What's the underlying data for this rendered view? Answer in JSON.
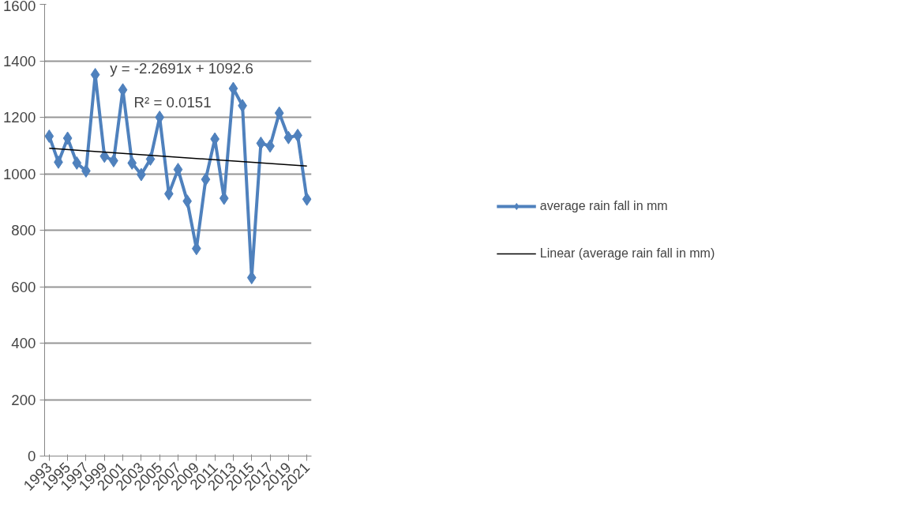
{
  "chart_data": {
    "type": "line",
    "x": [
      1993,
      1994,
      1995,
      1996,
      1997,
      1998,
      1999,
      2000,
      2001,
      2002,
      2003,
      2004,
      2005,
      2006,
      2007,
      2008,
      2009,
      2010,
      2011,
      2012,
      2013,
      2014,
      2015,
      2016,
      2017,
      2018,
      2019,
      2020,
      2021
    ],
    "series": [
      {
        "name": "average rain fall in mm",
        "color": "#4f81bd",
        "marker": "diamond",
        "values": [
          1133,
          1041,
          1126,
          1038,
          1010,
          1351,
          1062,
          1046,
          1297,
          1038,
          997,
          1052,
          1200,
          929,
          1015,
          903,
          735,
          980,
          1123,
          913,
          1302,
          1241,
          632,
          1108,
          1098,
          1215,
          1128,
          1136,
          910
        ]
      },
      {
        "name": "Linear (average rain fall in mm)",
        "color": "#000000",
        "marker": "none",
        "x": [
          1993,
          2021
        ],
        "values": [
          1090,
          1027
        ]
      }
    ],
    "xlim": [
      1992.5,
      2021.5
    ],
    "xticks": [
      1993,
      1995,
      1997,
      1999,
      2001,
      2003,
      2005,
      2007,
      2009,
      2011,
      2013,
      2015,
      2017,
      2019,
      2021
    ],
    "ylim": [
      0,
      1600
    ],
    "yticks": [
      0,
      200,
      400,
      600,
      800,
      1000,
      1200,
      1400,
      1600
    ],
    "annotations": [
      "y = -2.2691x + 1092.6",
      "R² = 0.0151"
    ],
    "grid": "y",
    "legend": "right",
    "line_style": "solid"
  }
}
